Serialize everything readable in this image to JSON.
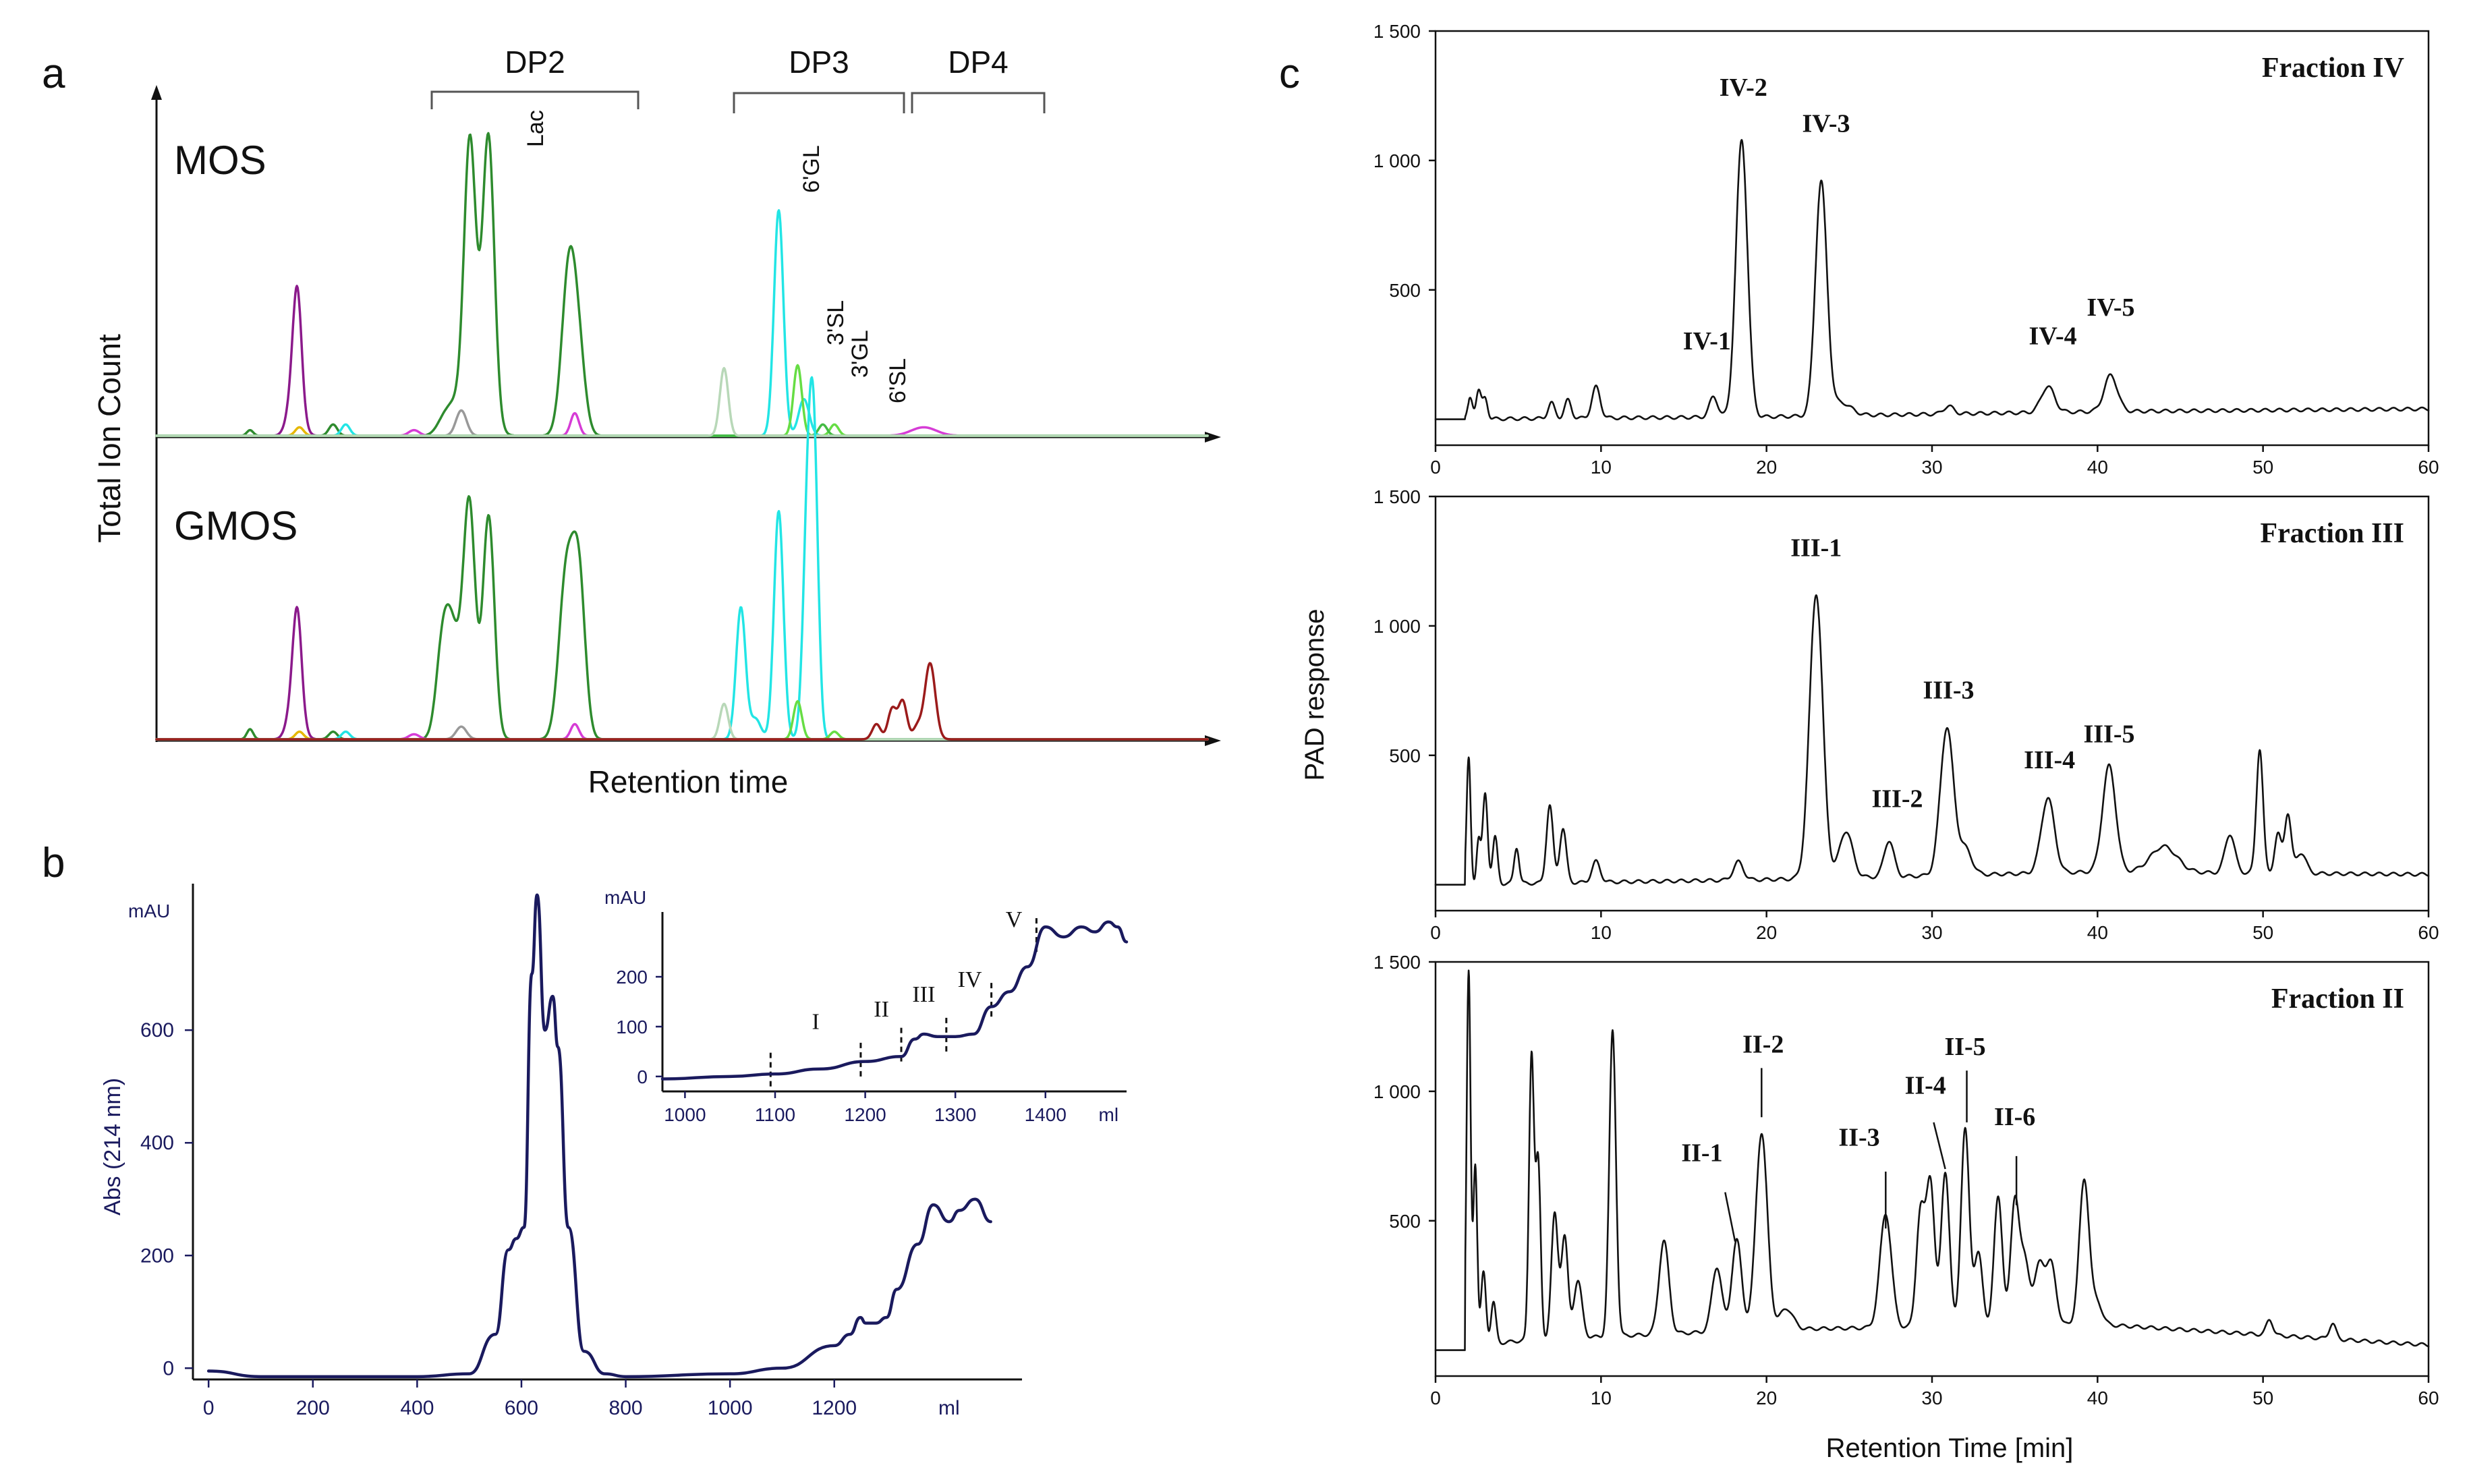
{
  "figure": {
    "panel_a": {
      "letter": "a",
      "ylabel": "Total Ion Count",
      "xlabel": "Retention time",
      "groups": [
        "DP2",
        "DP3",
        "DP4"
      ],
      "top_label": "MOS",
      "bottom_label": "GMOS",
      "peak_labels": [
        "Lac",
        "6'GL",
        "3'SL",
        "3'GL",
        "6'SL"
      ]
    },
    "panel_b": {
      "letter": "b",
      "unit_label": "mAU",
      "ylabel": "Abs (214 nm)",
      "xunit": "ml",
      "inset_fractions": [
        "I",
        "II",
        "III",
        "IV",
        "V"
      ]
    },
    "panel_c": {
      "letter": "c",
      "ylabel": "PAD response",
      "xlabel": "Retention Time [min]"
    }
  },
  "colors": {
    "dp2_green": "#2e8b2e",
    "light_green": "#7fd67f",
    "cyan": "#22e5e5",
    "magenta": "#d63cd6",
    "purple": "#8b1a8b",
    "darkred": "#9b1b1b",
    "gray": "#999999",
    "lightgray": "#b8d8b8",
    "navy": "#1a1a5e"
  },
  "chart_data": [
    {
      "id": "a-mos",
      "type": "line",
      "title": "MOS",
      "xlabel": "Retention time",
      "ylabel": "Total Ion Count",
      "xlim": [
        0,
        100
      ],
      "ylim": [
        0,
        100
      ],
      "series": [
        {
          "name": "purple",
          "color": "#8b1a8b",
          "peaks": [
            [
              13.4,
              34,
              0.4
            ],
            [
              13.2,
              20,
              0.6
            ]
          ]
        },
        {
          "name": "yellow",
          "color": "#e6b800",
          "peaks": [
            [
              13.6,
              3,
              0.4
            ]
          ]
        },
        {
          "name": "dp2-green",
          "color": "#2e8b2e",
          "peaks": [
            [
              29.8,
              95,
              0.55
            ],
            [
              31.6,
              95,
              0.55
            ],
            [
              30.8,
              16,
              1.0
            ],
            [
              28.5,
              9,
              0.7
            ],
            [
              27.4,
              6,
              0.7
            ],
            [
              39.3,
              62,
              0.7
            ],
            [
              40.3,
              18,
              0.6
            ],
            [
              8.9,
              2,
              0.3
            ],
            [
              16.8,
              4,
              0.4
            ]
          ]
        },
        {
          "name": "gray",
          "color": "#999999",
          "peaks": [
            [
              29.0,
              9,
              0.5
            ]
          ]
        },
        {
          "name": "magenta",
          "color": "#d63cd6",
          "peaks": [
            [
              39.8,
              8,
              0.4
            ],
            [
              24.5,
              2,
              0.5
            ],
            [
              73.0,
              3,
              1.2
            ]
          ]
        },
        {
          "name": "cyan",
          "color": "#22e5e5",
          "peaks": [
            [
              59.2,
              80,
              0.45
            ],
            [
              61.6,
              13,
              0.5
            ],
            [
              18.0,
              4,
              0.4
            ]
          ]
        },
        {
          "name": "light-green",
          "color": "#66dd44",
          "peaks": [
            [
              61.0,
              25,
              0.4
            ],
            [
              64.5,
              4,
              0.4
            ]
          ]
        },
        {
          "name": "green-2",
          "color": "#44bb44",
          "peaks": [
            [
              63.4,
              4,
              0.4
            ]
          ]
        },
        {
          "name": "pale",
          "color": "#b8d8b8",
          "peaks": [
            [
              54.0,
              24,
              0.4
            ]
          ]
        }
      ]
    },
    {
      "id": "a-gmos",
      "type": "line",
      "title": "GMOS",
      "xlim": [
        0,
        100
      ],
      "ylim": [
        0,
        100
      ],
      "series": [
        {
          "name": "purple",
          "color": "#8b1a8b",
          "peaks": [
            [
              13.4,
              33,
              0.4
            ],
            [
              13.2,
              20,
              0.6
            ]
          ]
        },
        {
          "name": "yellow",
          "color": "#e6b800",
          "peaks": [
            [
              13.6,
              3,
              0.4
            ]
          ]
        },
        {
          "name": "dp2-green",
          "color": "#2e8b2e",
          "peaks": [
            [
              29.8,
              85,
              0.55
            ],
            [
              31.6,
              88,
              0.55
            ],
            [
              27.2,
              35,
              0.6
            ],
            [
              28.1,
              34,
              0.6
            ],
            [
              29.1,
              18,
              0.6
            ],
            [
              39.0,
              65,
              0.7
            ],
            [
              40.2,
              60,
              0.6
            ],
            [
              8.9,
              4,
              0.3
            ],
            [
              16.8,
              3,
              0.4
            ]
          ]
        },
        {
          "name": "gray",
          "color": "#999999",
          "peaks": [
            [
              29.0,
              5,
              0.5
            ]
          ]
        },
        {
          "name": "magenta",
          "color": "#d63cd6",
          "peaks": [
            [
              39.8,
              6,
              0.4
            ],
            [
              24.5,
              2,
              0.5
            ]
          ]
        },
        {
          "name": "cyan",
          "color": "#22e5e5",
          "peaks": [
            [
              55.6,
              52,
              0.45
            ],
            [
              59.2,
              90,
              0.45
            ],
            [
              62.0,
              93,
              0.45
            ],
            [
              62.6,
              90,
              0.4
            ],
            [
              57.0,
              8,
              0.5
            ],
            [
              18.0,
              3,
              0.4
            ]
          ]
        },
        {
          "name": "light-green",
          "color": "#66dd44",
          "peaks": [
            [
              61.0,
              15,
              0.4
            ],
            [
              64.5,
              3,
              0.4
            ]
          ]
        },
        {
          "name": "pale",
          "color": "#b8d8b8",
          "peaks": [
            [
              54.0,
              14,
              0.4
            ]
          ]
        },
        {
          "name": "darkred",
          "color": "#9b1b1b",
          "peaks": [
            [
              68.5,
              6,
              0.4
            ],
            [
              70.0,
              12,
              0.4
            ],
            [
              71.0,
              15,
              0.4
            ],
            [
              73.6,
              30,
              0.5
            ],
            [
              72.4,
              5,
              0.4
            ]
          ]
        }
      ]
    },
    {
      "id": "b-main",
      "type": "line",
      "title": "",
      "xlabel": "ml",
      "ylabel": "Abs (214 nm)",
      "xlim": [
        -30,
        1560
      ],
      "ylim": [
        -20,
        860
      ],
      "xticks": [
        0,
        200,
        400,
        600,
        800,
        1000,
        1200
      ],
      "yticks": [
        0,
        200,
        400,
        600
      ],
      "y_unit": "mAU",
      "x": [
        0,
        100,
        400,
        500,
        550,
        575,
        590,
        605,
        620,
        630,
        645,
        660,
        670,
        690,
        720,
        760,
        800,
        1000,
        1100,
        1200,
        1230,
        1250,
        1260,
        1280,
        1300,
        1320,
        1360,
        1390,
        1420,
        1440,
        1470,
        1500
      ],
      "y": [
        -5,
        -15,
        -15,
        -10,
        60,
        210,
        230,
        250,
        700,
        840,
        600,
        660,
        570,
        250,
        30,
        -10,
        -15,
        -10,
        0,
        40,
        60,
        90,
        80,
        80,
        90,
        140,
        220,
        290,
        260,
        280,
        300,
        260
      ]
    },
    {
      "id": "b-inset",
      "type": "line",
      "title": "",
      "xlabel": "ml",
      "y_unit": "mAU",
      "xlim": [
        975,
        1490
      ],
      "ylim": [
        -30,
        330
      ],
      "xticks": [
        1000,
        1100,
        1200,
        1300,
        1400
      ],
      "yticks": [
        0,
        100,
        200
      ],
      "x": [
        975,
        1050,
        1100,
        1150,
        1200,
        1240,
        1255,
        1265,
        1280,
        1300,
        1320,
        1340,
        1360,
        1380,
        1400,
        1420,
        1440,
        1455,
        1470,
        1480,
        1490
      ],
      "y": [
        -5,
        0,
        5,
        15,
        30,
        40,
        75,
        85,
        80,
        80,
        85,
        140,
        170,
        220,
        300,
        280,
        300,
        290,
        310,
        300,
        270
      ],
      "dividers_ml": [
        1095,
        1195,
        1240,
        1290,
        1340,
        1390
      ],
      "fractions": [
        "I",
        "II",
        "III",
        "IV",
        "V"
      ]
    },
    {
      "id": "c-fraction-iv",
      "type": "line",
      "title": "Fraction IV",
      "xlabel": "Retention Time [min]",
      "ylabel": "PAD response",
      "xlim": [
        0,
        60
      ],
      "ylim": [
        -100,
        1500
      ],
      "xticks": [
        0,
        10,
        20,
        30,
        40,
        50,
        60
      ],
      "yticks": [
        500,
        1000,
        1500
      ],
      "peaks": [
        [
          2.1,
          80,
          0.15
        ],
        [
          2.6,
          110,
          0.15
        ],
        [
          3.0,
          80,
          0.15
        ],
        [
          7.0,
          60,
          0.2
        ],
        [
          8.0,
          70,
          0.2
        ],
        [
          9.7,
          120,
          0.25
        ],
        [
          16.8,
          80,
          0.25
        ],
        [
          18.5,
          1070,
          0.35
        ],
        [
          23.3,
          900,
          0.35
        ],
        [
          24.5,
          50,
          0.6
        ],
        [
          31.0,
          30,
          0.3
        ],
        [
          37.0,
          100,
          0.4
        ],
        [
          40.8,
          140,
          0.4
        ]
      ],
      "baseline": [
        [
          0,
          0
        ],
        [
          20,
          10
        ],
        [
          40,
          30
        ],
        [
          60,
          40
        ]
      ],
      "annotations": [
        "IV-1",
        "IV-2",
        "IV-3",
        "IV-4",
        "IV-5"
      ]
    },
    {
      "id": "c-fraction-iii",
      "type": "line",
      "title": "Fraction III",
      "xlabel": "Retention Time [min]",
      "ylabel": "PAD response",
      "xlim": [
        0,
        60
      ],
      "ylim": [
        -100,
        1500
      ],
      "xticks": [
        0,
        10,
        20,
        30,
        40,
        50,
        60
      ],
      "yticks": [
        500,
        1000,
        1500
      ],
      "peaks": [
        [
          2.0,
          490,
          0.12
        ],
        [
          2.6,
          170,
          0.12
        ],
        [
          3.0,
          350,
          0.15
        ],
        [
          3.6,
          180,
          0.15
        ],
        [
          4.9,
          140,
          0.15
        ],
        [
          6.9,
          300,
          0.2
        ],
        [
          7.7,
          210,
          0.2
        ],
        [
          9.7,
          80,
          0.25
        ],
        [
          18.3,
          70,
          0.3
        ],
        [
          23.0,
          1100,
          0.4
        ],
        [
          24.8,
          180,
          0.4
        ],
        [
          27.4,
          140,
          0.3
        ],
        [
          30.9,
          570,
          0.4
        ],
        [
          32.0,
          100,
          0.4
        ],
        [
          37.0,
          290,
          0.4
        ],
        [
          40.7,
          410,
          0.4
        ],
        [
          44.0,
          100,
          0.8
        ],
        [
          48.0,
          150,
          0.3
        ],
        [
          49.8,
          480,
          0.2
        ],
        [
          50.9,
          150,
          0.2
        ],
        [
          51.5,
          230,
          0.2
        ],
        [
          52.3,
          80,
          0.3
        ]
      ],
      "baseline": [
        [
          0,
          0
        ],
        [
          20,
          20
        ],
        [
          40,
          50
        ],
        [
          60,
          40
        ]
      ],
      "annotations": [
        "III-1",
        "III-2",
        "III-3",
        "III-4",
        "III-5"
      ]
    },
    {
      "id": "c-fraction-ii",
      "type": "line",
      "title": "Fraction II",
      "xlabel": "Retention Time [min]",
      "ylabel": "PAD response",
      "xlim": [
        0,
        60
      ],
      "ylim": [
        -100,
        1500
      ],
      "xticks": [
        0,
        10,
        20,
        30,
        40,
        50,
        60
      ],
      "yticks": [
        500,
        1000,
        1500
      ],
      "peaks": [
        [
          2.0,
          1450,
          0.12
        ],
        [
          2.4,
          700,
          0.12
        ],
        [
          2.9,
          280,
          0.15
        ],
        [
          3.5,
          160,
          0.15
        ],
        [
          5.8,
          1100,
          0.15
        ],
        [
          6.2,
          680,
          0.15
        ],
        [
          7.2,
          480,
          0.2
        ],
        [
          7.8,
          390,
          0.2
        ],
        [
          8.6,
          220,
          0.25
        ],
        [
          10.7,
          1180,
          0.2
        ],
        [
          13.8,
          360,
          0.3
        ],
        [
          17.0,
          250,
          0.3
        ],
        [
          18.2,
          350,
          0.3
        ],
        [
          19.7,
          760,
          0.35
        ],
        [
          21.2,
          80,
          0.4
        ],
        [
          27.2,
          440,
          0.35
        ],
        [
          29.3,
          440,
          0.25
        ],
        [
          29.9,
          560,
          0.25
        ],
        [
          30.8,
          600,
          0.25
        ],
        [
          32.0,
          760,
          0.25
        ],
        [
          32.8,
          280,
          0.25
        ],
        [
          34.0,
          500,
          0.25
        ],
        [
          35.0,
          470,
          0.25
        ],
        [
          35.6,
          250,
          0.3
        ],
        [
          36.5,
          230,
          0.3
        ],
        [
          37.2,
          230,
          0.3
        ],
        [
          39.2,
          560,
          0.3
        ],
        [
          40.0,
          80,
          0.3
        ],
        [
          50.4,
          60,
          0.2
        ],
        [
          54.2,
          60,
          0.2
        ]
      ],
      "baseline": [
        [
          0,
          0
        ],
        [
          5.6,
          40
        ],
        [
          20,
          80
        ],
        [
          40,
          100
        ],
        [
          60,
          20
        ]
      ],
      "annotations": [
        "II-1",
        "II-2",
        "II-3",
        "II-4",
        "II-5",
        "II-6"
      ]
    }
  ]
}
